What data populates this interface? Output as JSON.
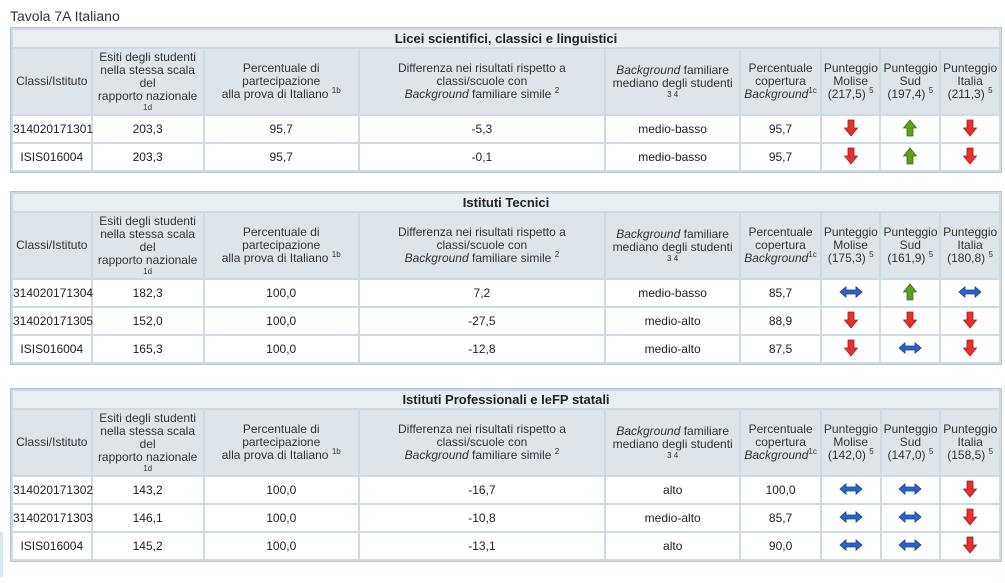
{
  "page_title": "Tavola 7A Italiano",
  "columns": {
    "classi": "Classi/Istituto",
    "esiti": [
      "Esiti degli studenti",
      "nella stessa scala",
      "del",
      "rapporto nazionale"
    ],
    "esiti_note": "1d",
    "percentuale_partecipazione": [
      "Percentuale di",
      "partecipazione",
      "alla prova di Italiano"
    ],
    "percentuale_partecipazione_note": "1b",
    "differenza": [
      "Differenza nei risultati rispetto a",
      "classi/scuole con"
    ],
    "differenza_em": "Background",
    "differenza_tail": " familiare simile",
    "differenza_note": "2",
    "background_em": "Background",
    "background_tail": " familiare",
    "background_line2": "mediano degli studenti",
    "background_note": "3 4",
    "copertura": [
      "Percentuale",
      "copertura"
    ],
    "copertura_em": "Background",
    "copertura_note": "1c",
    "punteggio_word": "Punteggio",
    "punteggio_note": "5",
    "molise": "Molise",
    "sud": "Sud",
    "italia": "Italia"
  },
  "sections": [
    {
      "title": "Licei scientifici, classici e linguistici",
      "ref": {
        "molise": "(217,5)",
        "sud": "(197,4)",
        "italia": "(211,3)"
      },
      "rows": [
        {
          "id": "314020171301",
          "esiti": "203,3",
          "part": "95,7",
          "diff": "-5,3",
          "bg": "medio-basso",
          "cop": "95,7",
          "molise": "down",
          "sud": "up",
          "italia": "down"
        },
        {
          "id": "ISIS016004",
          "esiti": "203,3",
          "part": "95,7",
          "diff": "-0,1",
          "bg": "medio-basso",
          "cop": "95,7",
          "molise": "down",
          "sud": "up",
          "italia": "down"
        }
      ]
    },
    {
      "title": "Istituti Tecnici",
      "ref": {
        "molise": "(175,3)",
        "sud": "(161,9)",
        "italia": "(180,8)"
      },
      "rows": [
        {
          "id": "314020171304",
          "esiti": "182,3",
          "part": "100,0",
          "diff": "7,2",
          "bg": "medio-basso",
          "cop": "85,7",
          "molise": "equal",
          "sud": "up",
          "italia": "equal"
        },
        {
          "id": "314020171305",
          "esiti": "152,0",
          "part": "100,0",
          "diff": "-27,5",
          "bg": "medio-alto",
          "cop": "88,9",
          "molise": "down",
          "sud": "down",
          "italia": "down"
        },
        {
          "id": "ISIS016004",
          "esiti": "165,3",
          "part": "100,0",
          "diff": "-12,8",
          "bg": "medio-alto",
          "cop": "87,5",
          "molise": "down",
          "sud": "equal",
          "italia": "down"
        }
      ]
    },
    {
      "title": "Istituti Professionali e IeFP statali",
      "ref": {
        "molise": "(142,0)",
        "sud": "(147,0)",
        "italia": "(158,5)"
      },
      "rows": [
        {
          "id": "314020171302",
          "esiti": "143,2",
          "part": "100,0",
          "diff": "-16,7",
          "bg": "alto",
          "cop": "100,0",
          "molise": "equal",
          "sud": "equal",
          "italia": "down"
        },
        {
          "id": "314020171303",
          "esiti": "146,1",
          "part": "100,0",
          "diff": "-10,8",
          "bg": "medio-alto",
          "cop": "85,7",
          "molise": "equal",
          "sud": "equal",
          "italia": "down"
        },
        {
          "id": "ISIS016004",
          "esiti": "145,2",
          "part": "100,0",
          "diff": "-13,1",
          "bg": "alto",
          "cop": "90,0",
          "molise": "equal",
          "sud": "equal",
          "italia": "down"
        }
      ]
    }
  ],
  "icon_names": {
    "down": "arrow-down-icon",
    "up": "arrow-up-icon",
    "equal": "double-arrow-icon"
  },
  "colors": {
    "down": "#e3312f",
    "up": "#5f9e1f",
    "equal": "#2e62c9"
  }
}
